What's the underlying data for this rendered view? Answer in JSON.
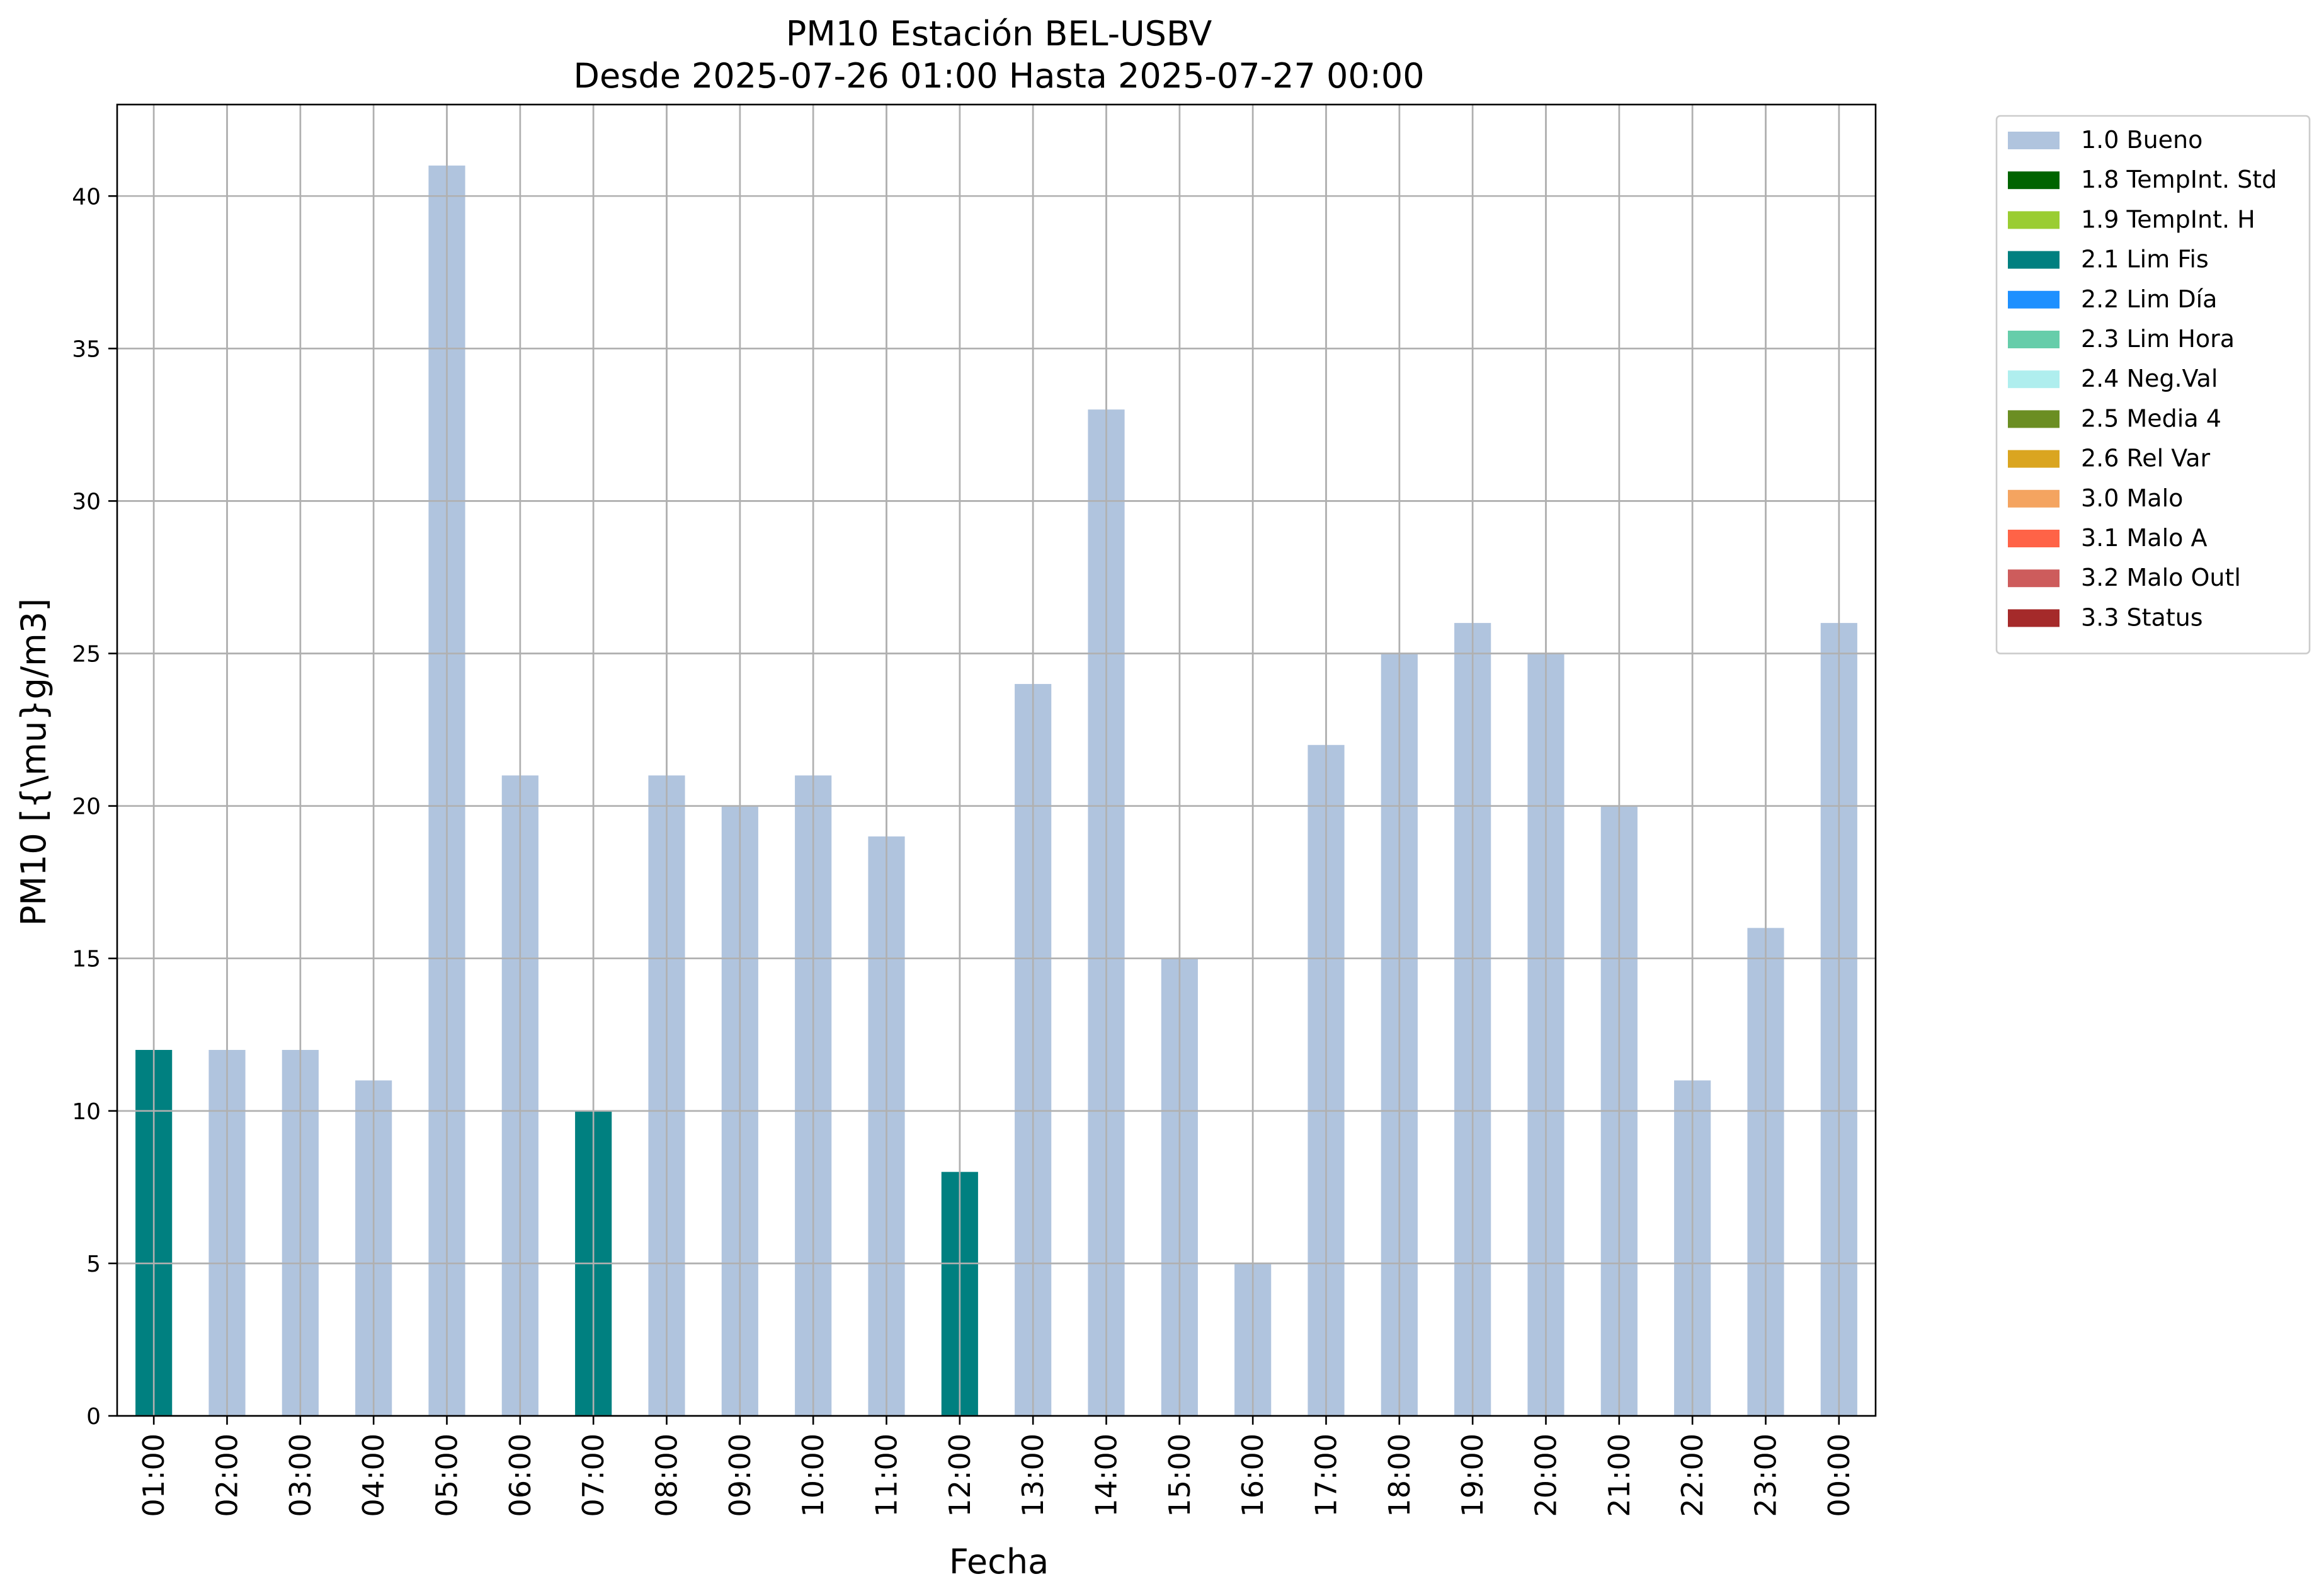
{
  "chart_data": {
    "type": "bar",
    "title": "PM10 Estación BEL-USBV",
    "subtitle": "Desde 2025-07-26 01:00 Hasta 2025-07-27 00:00",
    "xlabel": "Fecha",
    "ylabel": "PM10 [{\\mu}g/m3]",
    "ylim": [
      0,
      43
    ],
    "yticks": [
      0,
      5,
      10,
      15,
      20,
      25,
      30,
      35,
      40
    ],
    "grid": true,
    "legend_position": "outside-top-right",
    "categories": [
      "01:00",
      "02:00",
      "03:00",
      "04:00",
      "05:00",
      "06:00",
      "07:00",
      "08:00",
      "09:00",
      "10:00",
      "11:00",
      "12:00",
      "13:00",
      "14:00",
      "15:00",
      "16:00",
      "17:00",
      "18:00",
      "19:00",
      "20:00",
      "21:00",
      "22:00",
      "23:00",
      "00:00"
    ],
    "values": [
      12,
      12,
      12,
      11,
      41,
      21,
      10,
      21,
      20,
      21,
      19,
      8,
      24,
      33,
      15,
      5,
      22,
      25,
      26,
      25,
      20,
      11,
      16,
      26
    ],
    "flags": [
      "2.1 Lim Fis",
      "1.0 Bueno",
      "1.0 Bueno",
      "1.0 Bueno",
      "1.0 Bueno",
      "1.0 Bueno",
      "2.1 Lim Fis",
      "1.0 Bueno",
      "1.0 Bueno",
      "1.0 Bueno",
      "1.0 Bueno",
      "2.1 Lim Fis",
      "1.0 Bueno",
      "1.0 Bueno",
      "1.0 Bueno",
      "1.0 Bueno",
      "1.0 Bueno",
      "1.0 Bueno",
      "1.0 Bueno",
      "1.0 Bueno",
      "1.0 Bueno",
      "1.0 Bueno",
      "1.0 Bueno",
      "1.0 Bueno"
    ],
    "legend": [
      {
        "label": "1.0 Bueno",
        "color": "#b0c4de"
      },
      {
        "label": "1.8 TempInt. Std",
        "color": "#006400"
      },
      {
        "label": "1.9 TempInt. H",
        "color": "#9acd32"
      },
      {
        "label": "2.1 Lim Fis",
        "color": "#008080"
      },
      {
        "label": "2.2 Lim Día",
        "color": "#1e90ff"
      },
      {
        "label": "2.3 Lim Hora",
        "color": "#66cdaa"
      },
      {
        "label": "2.4 Neg.Val",
        "color": "#afeeee"
      },
      {
        "label": "2.5 Media 4",
        "color": "#6b8e23"
      },
      {
        "label": "2.6 Rel Var",
        "color": "#daa520"
      },
      {
        "label": "3.0 Malo",
        "color": "#f4a460"
      },
      {
        "label": "3.1 Malo A",
        "color": "#ff6347"
      },
      {
        "label": "3.2 Malo Outl",
        "color": "#cd5c5c"
      },
      {
        "label": "3.3 Status",
        "color": "#a52a2a"
      }
    ]
  }
}
